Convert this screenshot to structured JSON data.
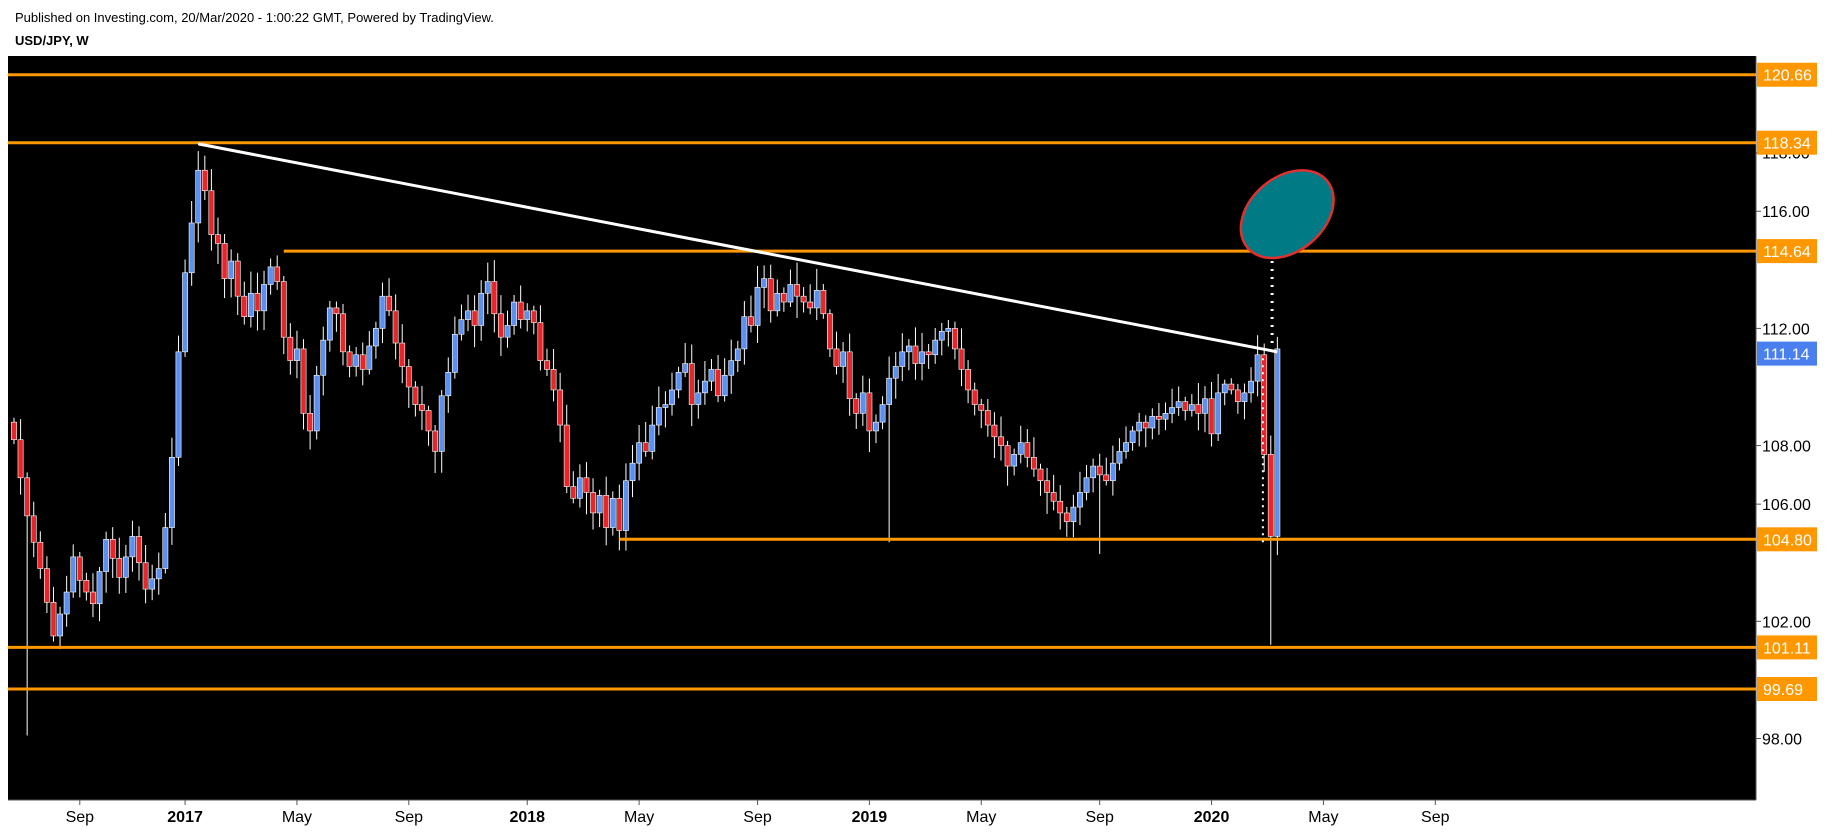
{
  "header": {
    "published": "Published on Investing.com, 20/Mar/2020 - 1:00:22 GMT, Powered by TradingView.",
    "symbol": "USD/JPY, W"
  },
  "colors": {
    "background": "#000000",
    "bull": "#5b8ff0",
    "bear": "#e8262a",
    "level": "#ff9800",
    "price_badge": "#4a7ff0",
    "ellipse": "#007b86",
    "ellipse_border": "#e03030"
  },
  "chart_data": {
    "type": "candlestick",
    "title": "USD/JPY, W",
    "ylim": [
      95.9,
      121.3
    ],
    "y_ticks": [
      "98.00",
      "102.00",
      "106.00",
      "108.00",
      "112.00",
      "116.00",
      "118.00"
    ],
    "x_ticks": [
      {
        "label": "Sep",
        "week": 10
      },
      {
        "label": "2017",
        "week": 26
      },
      {
        "label": "May",
        "week": 43
      },
      {
        "label": "Sep",
        "week": 60
      },
      {
        "label": "2018",
        "week": 78
      },
      {
        "label": "May",
        "week": 95
      },
      {
        "label": "Sep",
        "week": 113
      },
      {
        "label": "2019",
        "week": 130
      },
      {
        "label": "May",
        "week": 147
      },
      {
        "label": "Sep",
        "week": 165
      },
      {
        "label": "2020",
        "week": 182
      },
      {
        "label": "May",
        "week": 199
      },
      {
        "label": "Sep",
        "week": 216
      }
    ],
    "levels": [
      {
        "price": 120.66,
        "label": "120.66",
        "from_week": -1
      },
      {
        "price": 118.34,
        "label": "118.34",
        "from_week": -1
      },
      {
        "price": 114.64,
        "label": "114.64",
        "from_week": 41
      },
      {
        "price": 104.8,
        "label": "104.80",
        "from_week": 92
      },
      {
        "price": 101.11,
        "label": "101.11",
        "from_week": -1
      },
      {
        "price": 99.69,
        "label": "99.69",
        "from_week": -1
      }
    ],
    "last_price": {
      "price": 111.14,
      "label": "111.14"
    },
    "trendline": {
      "from": {
        "week": 28,
        "price": 118.3
      },
      "to": {
        "week": 192,
        "price": 111.2
      }
    },
    "projection": {
      "week": 191.2,
      "from": 111.5,
      "to": 116.9
    },
    "impulse_marker": {
      "week": 189.8,
      "from": 104.7,
      "to": 111.0
    },
    "target_ellipse": {
      "week": 193.5,
      "price": 115.9
    },
    "close_path": [
      [
        0,
        108.2
      ],
      [
        2,
        105.6
      ],
      [
        4,
        103.8
      ],
      [
        6,
        101.5
      ],
      [
        8,
        103.0
      ],
      [
        9,
        104.2
      ],
      [
        10,
        103.4
      ],
      [
        12,
        102.6
      ],
      [
        14,
        104.8
      ],
      [
        16,
        103.5
      ],
      [
        18,
        104.9
      ],
      [
        20,
        103.1
      ],
      [
        22,
        103.8
      ],
      [
        23,
        105.2
      ],
      [
        24,
        107.6
      ],
      [
        25,
        111.2
      ],
      [
        26,
        113.9
      ],
      [
        27,
        115.6
      ],
      [
        28,
        117.4
      ],
      [
        29,
        116.7
      ],
      [
        30,
        115.2
      ],
      [
        31,
        114.9
      ],
      [
        32,
        113.7
      ],
      [
        33,
        114.3
      ],
      [
        34,
        113.1
      ],
      [
        35,
        112.4
      ],
      [
        36,
        113.2
      ],
      [
        37,
        112.6
      ],
      [
        38,
        113.5
      ],
      [
        39,
        114.1
      ],
      [
        40,
        113.6
      ],
      [
        41,
        111.7
      ],
      [
        42,
        110.9
      ],
      [
        43,
        111.3
      ],
      [
        44,
        109.1
      ],
      [
        45,
        108.5
      ],
      [
        46,
        110.4
      ],
      [
        47,
        111.6
      ],
      [
        48,
        112.7
      ],
      [
        49,
        112.5
      ],
      [
        50,
        111.2
      ],
      [
        51,
        110.7
      ],
      [
        52,
        111.1
      ],
      [
        53,
        110.6
      ],
      [
        54,
        111.4
      ],
      [
        55,
        112.0
      ],
      [
        56,
        113.1
      ],
      [
        57,
        112.6
      ],
      [
        58,
        111.5
      ],
      [
        59,
        110.7
      ],
      [
        60,
        110.0
      ],
      [
        61,
        109.4
      ],
      [
        62,
        109.2
      ],
      [
        63,
        108.5
      ],
      [
        64,
        107.8
      ],
      [
        65,
        109.7
      ],
      [
        66,
        110.5
      ],
      [
        67,
        111.8
      ],
      [
        68,
        112.3
      ],
      [
        69,
        112.6
      ],
      [
        70,
        112.1
      ],
      [
        71,
        113.2
      ],
      [
        72,
        113.6
      ],
      [
        73,
        112.5
      ],
      [
        74,
        111.7
      ],
      [
        75,
        112.1
      ],
      [
        76,
        112.9
      ],
      [
        77,
        112.3
      ],
      [
        78,
        112.6
      ],
      [
        79,
        112.2
      ],
      [
        80,
        110.9
      ],
      [
        81,
        110.6
      ],
      [
        82,
        109.9
      ],
      [
        83,
        108.7
      ],
      [
        84,
        106.6
      ],
      [
        85,
        106.2
      ],
      [
        86,
        106.9
      ],
      [
        87,
        106.4
      ],
      [
        88,
        105.7
      ],
      [
        89,
        106.3
      ],
      [
        90,
        105.2
      ],
      [
        91,
        106.2
      ],
      [
        92,
        105.1
      ],
      [
        93,
        106.8
      ],
      [
        94,
        107.4
      ],
      [
        95,
        108.1
      ],
      [
        96,
        107.8
      ],
      [
        97,
        108.7
      ],
      [
        98,
        109.3
      ],
      [
        99,
        109.4
      ],
      [
        100,
        109.9
      ],
      [
        101,
        110.5
      ],
      [
        102,
        110.8
      ],
      [
        103,
        109.4
      ],
      [
        104,
        109.8
      ],
      [
        105,
        110.2
      ],
      [
        106,
        110.6
      ],
      [
        107,
        109.7
      ],
      [
        108,
        110.4
      ],
      [
        109,
        110.9
      ],
      [
        110,
        111.3
      ],
      [
        111,
        112.4
      ],
      [
        112,
        112.1
      ],
      [
        113,
        113.4
      ],
      [
        114,
        113.7
      ],
      [
        115,
        112.6
      ],
      [
        116,
        113.2
      ],
      [
        117,
        112.9
      ],
      [
        118,
        113.5
      ],
      [
        119,
        113.1
      ],
      [
        120,
        112.9
      ],
      [
        121,
        112.7
      ],
      [
        122,
        113.3
      ],
      [
        123,
        112.5
      ],
      [
        124,
        111.3
      ],
      [
        125,
        110.7
      ],
      [
        126,
        111.2
      ],
      [
        127,
        109.6
      ],
      [
        128,
        109.1
      ],
      [
        129,
        109.8
      ],
      [
        130,
        108.5
      ],
      [
        131,
        108.8
      ],
      [
        132,
        109.4
      ],
      [
        133,
        110.3
      ],
      [
        134,
        110.7
      ],
      [
        135,
        111.2
      ],
      [
        136,
        111.4
      ],
      [
        137,
        110.8
      ],
      [
        138,
        111.2
      ],
      [
        139,
        111.1
      ],
      [
        140,
        111.6
      ],
      [
        141,
        111.9
      ],
      [
        142,
        112.0
      ],
      [
        143,
        111.3
      ],
      [
        144,
        110.6
      ],
      [
        145,
        109.9
      ],
      [
        146,
        109.4
      ],
      [
        147,
        109.2
      ],
      [
        148,
        108.7
      ],
      [
        149,
        108.3
      ],
      [
        150,
        108.0
      ],
      [
        151,
        107.3
      ],
      [
        152,
        107.7
      ],
      [
        153,
        108.1
      ],
      [
        154,
        107.6
      ],
      [
        155,
        107.2
      ],
      [
        156,
        106.8
      ],
      [
        157,
        106.4
      ],
      [
        158,
        106.1
      ],
      [
        159,
        105.7
      ],
      [
        160,
        105.4
      ],
      [
        161,
        105.9
      ],
      [
        162,
        106.4
      ],
      [
        163,
        106.9
      ],
      [
        164,
        107.3
      ],
      [
        165,
        107.0
      ],
      [
        166,
        106.8
      ],
      [
        167,
        107.4
      ],
      [
        168,
        107.8
      ],
      [
        169,
        108.1
      ],
      [
        170,
        108.5
      ],
      [
        171,
        108.8
      ],
      [
        172,
        108.6
      ],
      [
        173,
        109.0
      ],
      [
        174,
        108.9
      ],
      [
        175,
        109.1
      ],
      [
        176,
        109.3
      ],
      [
        177,
        109.5
      ],
      [
        178,
        109.2
      ],
      [
        179,
        109.4
      ],
      [
        180,
        109.1
      ],
      [
        181,
        109.6
      ],
      [
        182,
        108.4
      ],
      [
        183,
        109.8
      ],
      [
        184,
        110.1
      ],
      [
        185,
        109.9
      ],
      [
        186,
        109.5
      ],
      [
        187,
        109.8
      ],
      [
        188,
        110.2
      ],
      [
        189,
        111.1
      ],
      [
        190,
        107.7
      ],
      [
        191,
        104.9
      ],
      [
        192,
        111.3
      ]
    ]
  }
}
